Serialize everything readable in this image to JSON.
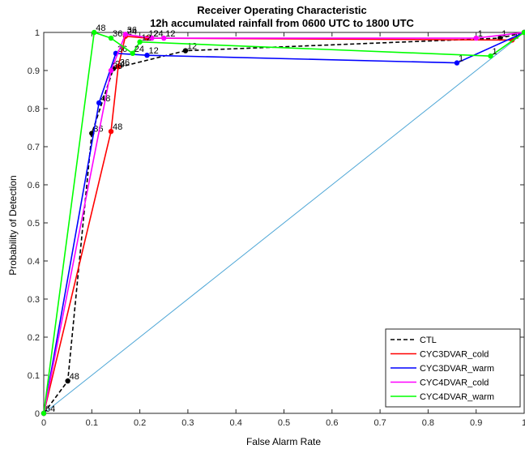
{
  "chart_data": {
    "type": "line",
    "title": "Receiver Operating Characteristic",
    "subtitle": "12h accumulated rainfall from 0600 UTC to 1800 UTC",
    "xlabel": "False Alarm Rate",
    "ylabel": "Probability of Detection",
    "xlim": [
      0,
      1
    ],
    "ylim": [
      0,
      1
    ],
    "xticks": [
      "0",
      "0.1",
      "0.2",
      "0.3",
      "0.4",
      "0.5",
      "0.6",
      "0.7",
      "0.8",
      "0.9",
      "1"
    ],
    "yticks": [
      "0",
      "0.1",
      "0.2",
      "0.3",
      "0.4",
      "0.5",
      "0.6",
      "0.7",
      "0.8",
      "0.9",
      "1"
    ],
    "grid": false,
    "legend_position": "bottom-right",
    "diagonal": {
      "x": [
        0,
        1
      ],
      "y": [
        0,
        1
      ],
      "color": "#4DA6D6"
    },
    "series": [
      {
        "name": "CTL",
        "color": "#000000",
        "dashed": true,
        "points": [
          {
            "x": 0,
            "y": 0,
            "label": "64"
          },
          {
            "x": 0.05,
            "y": 0.085,
            "label": "48"
          },
          {
            "x": 0.1,
            "y": 0.735,
            "label": "36"
          },
          {
            "x": 0.145,
            "y": 0.905,
            "label": "24"
          },
          {
            "x": 0.295,
            "y": 0.952,
            "label": "12"
          },
          {
            "x": 0.95,
            "y": 0.985,
            "label": "1"
          },
          {
            "x": 1,
            "y": 1,
            "label": ""
          }
        ]
      },
      {
        "name": "CYC3DVAR_cold",
        "color": "#FF0000",
        "dashed": false,
        "points": [
          {
            "x": 0,
            "y": 0,
            "label": ""
          },
          {
            "x": 0.14,
            "y": 0.74,
            "label": "48"
          },
          {
            "x": 0.155,
            "y": 0.91,
            "label": "36"
          },
          {
            "x": 0.17,
            "y": 0.99,
            "label": "24"
          },
          {
            "x": 0.215,
            "y": 0.985,
            "label": "12"
          },
          {
            "x": 0.975,
            "y": 0.98,
            "label": "1"
          },
          {
            "x": 1,
            "y": 1,
            "label": ""
          }
        ]
      },
      {
        "name": "CYC3DVAR_warm",
        "color": "#0000FF",
        "dashed": false,
        "points": [
          {
            "x": 0,
            "y": 0,
            "label": ""
          },
          {
            "x": 0.115,
            "y": 0.815,
            "label": "48"
          },
          {
            "x": 0.15,
            "y": 0.945,
            "label": "36"
          },
          {
            "x": 0.215,
            "y": 0.94,
            "label": "12"
          },
          {
            "x": 0.86,
            "y": 0.92,
            "label": "1"
          },
          {
            "x": 1,
            "y": 1,
            "label": ""
          }
        ]
      },
      {
        "name": "CYC4DVAR_cold",
        "color": "#FF00FF",
        "dashed": false,
        "points": [
          {
            "x": 0,
            "y": 0,
            "label": ""
          },
          {
            "x": 0.14,
            "y": 0.9,
            "label": "36"
          },
          {
            "x": 0.17,
            "y": 0.995,
            "label": "36"
          },
          {
            "x": 0.225,
            "y": 0.985,
            "label": "24"
          },
          {
            "x": 0.25,
            "y": 0.985,
            "label": "12"
          },
          {
            "x": 0.9,
            "y": 0.985,
            "label": "1"
          },
          {
            "x": 1,
            "y": 1,
            "label": ""
          }
        ]
      },
      {
        "name": "CYC4DVAR_warm",
        "color": "#00FF00",
        "dashed": false,
        "points": [
          {
            "x": 0,
            "y": 0,
            "label": ""
          },
          {
            "x": 0.105,
            "y": 1.0,
            "label": "48"
          },
          {
            "x": 0.14,
            "y": 0.985,
            "label": "36"
          },
          {
            "x": 0.185,
            "y": 0.945,
            "label": "24"
          },
          {
            "x": 0.2,
            "y": 0.975,
            "label": "12"
          },
          {
            "x": 0.93,
            "y": 0.938,
            "label": "1"
          },
          {
            "x": 1,
            "y": 1,
            "label": ""
          }
        ]
      }
    ]
  }
}
